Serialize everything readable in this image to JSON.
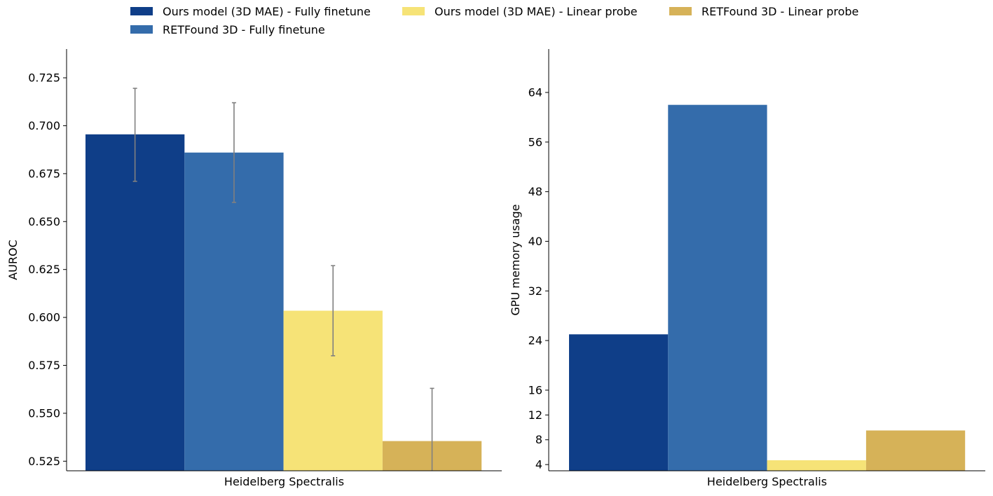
{
  "legend": {
    "placement": "top-center",
    "entries": [
      {
        "label": "Ours model (3D MAE) - Fully finetune",
        "color": "#0f3e88"
      },
      {
        "label": "RETFound 3D - Fully finetune",
        "color": "#346cab"
      },
      {
        "label": "Ours model (3D MAE) - Linear probe",
        "color": "#f6e377"
      },
      {
        "label": "RETFound 3D - Linear probe",
        "color": "#d6b258"
      }
    ]
  },
  "chart_data": [
    {
      "type": "bar",
      "xlabel": "Heidelberg Spectralis",
      "ylabel": "AUROC",
      "ylim": [
        0.52,
        0.74
      ],
      "yticks": [
        "0.525",
        "0.550",
        "0.575",
        "0.600",
        "0.625",
        "0.650",
        "0.675",
        "0.700",
        "0.725"
      ],
      "grid": false,
      "categories": [
        "Heidelberg Spectralis"
      ],
      "series": [
        {
          "name": "Ours model (3D MAE) - Fully finetune",
          "values": [
            0.6955
          ],
          "error_low": [
            0.671
          ],
          "error_high": [
            0.7195
          ]
        },
        {
          "name": "RETFound 3D - Fully finetune",
          "values": [
            0.686
          ],
          "error_low": [
            0.66
          ],
          "error_high": [
            0.712
          ]
        },
        {
          "name": "Ours model (3D MAE) - Linear probe",
          "values": [
            0.6035
          ],
          "error_low": [
            0.58
          ],
          "error_high": [
            0.627
          ]
        },
        {
          "name": "RETFound 3D - Linear probe",
          "values": [
            0.5355
          ],
          "error_low": [
            0.508
          ],
          "error_high": [
            0.563
          ]
        }
      ]
    },
    {
      "type": "bar",
      "xlabel": "Heidelberg Spectralis",
      "ylabel": "GPU memory usage",
      "ylim": [
        3,
        71
      ],
      "yticks": [
        "4",
        "8",
        "12",
        "16",
        "24",
        "32",
        "40",
        "48",
        "56",
        "64"
      ],
      "grid": false,
      "categories": [
        "Heidelberg Spectralis"
      ],
      "series": [
        {
          "name": "Ours model (3D MAE) - Fully finetune",
          "values": [
            25.0
          ]
        },
        {
          "name": "RETFound 3D - Fully finetune",
          "values": [
            62.0
          ]
        },
        {
          "name": "Ours model (3D MAE) - Linear probe",
          "values": [
            4.7
          ]
        },
        {
          "name": "RETFound 3D - Linear probe",
          "values": [
            9.5
          ]
        }
      ]
    }
  ]
}
